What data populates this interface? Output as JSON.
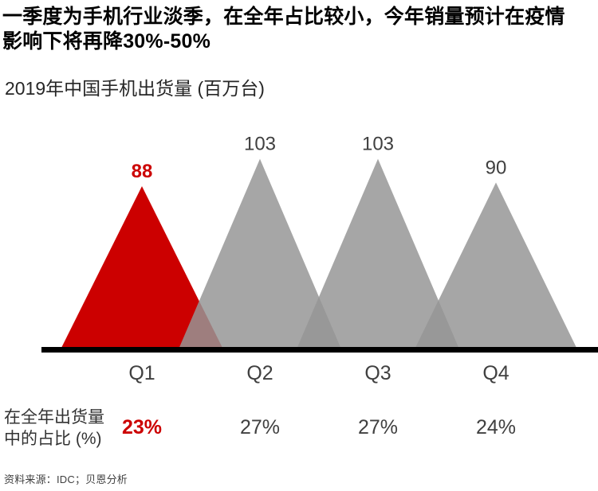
{
  "page": {
    "title_line1": "一季度为手机行业淡季，在全年占比较小，今年销量预计在疫情",
    "title_line2": "影响下将再降30%-50%",
    "subtitle": "2019年中国手机出货量 (百万台)",
    "source": "资料来源：IDC；贝恩分析"
  },
  "share_row": {
    "label_line1": "在全年出货量",
    "label_line2": "中的占比 (%)"
  },
  "chart_data": {
    "type": "bar",
    "style": "overlapping-triangle-peaks",
    "title": "2019年中国手机出货量 (百万台)",
    "unit": "百万台",
    "categories": [
      "Q1",
      "Q2",
      "Q3",
      "Q4"
    ],
    "values": [
      88,
      103,
      103,
      90
    ],
    "share_of_year": [
      "23%",
      "27%",
      "27%",
      "24%"
    ],
    "share_row_label": "在全年出货量中的占比 (%)",
    "highlight_index": 0,
    "value_label_position": "above-peak",
    "legend": "none",
    "grid": "off",
    "ylim": [
      0,
      110
    ],
    "colors": {
      "highlight": "#cc0000",
      "triangle_gray": "#a6a6a6",
      "triangle_gray_rgba": "rgba(150,150,150,0.843)",
      "label_dark": "#404040",
      "axis": "#000000"
    }
  }
}
